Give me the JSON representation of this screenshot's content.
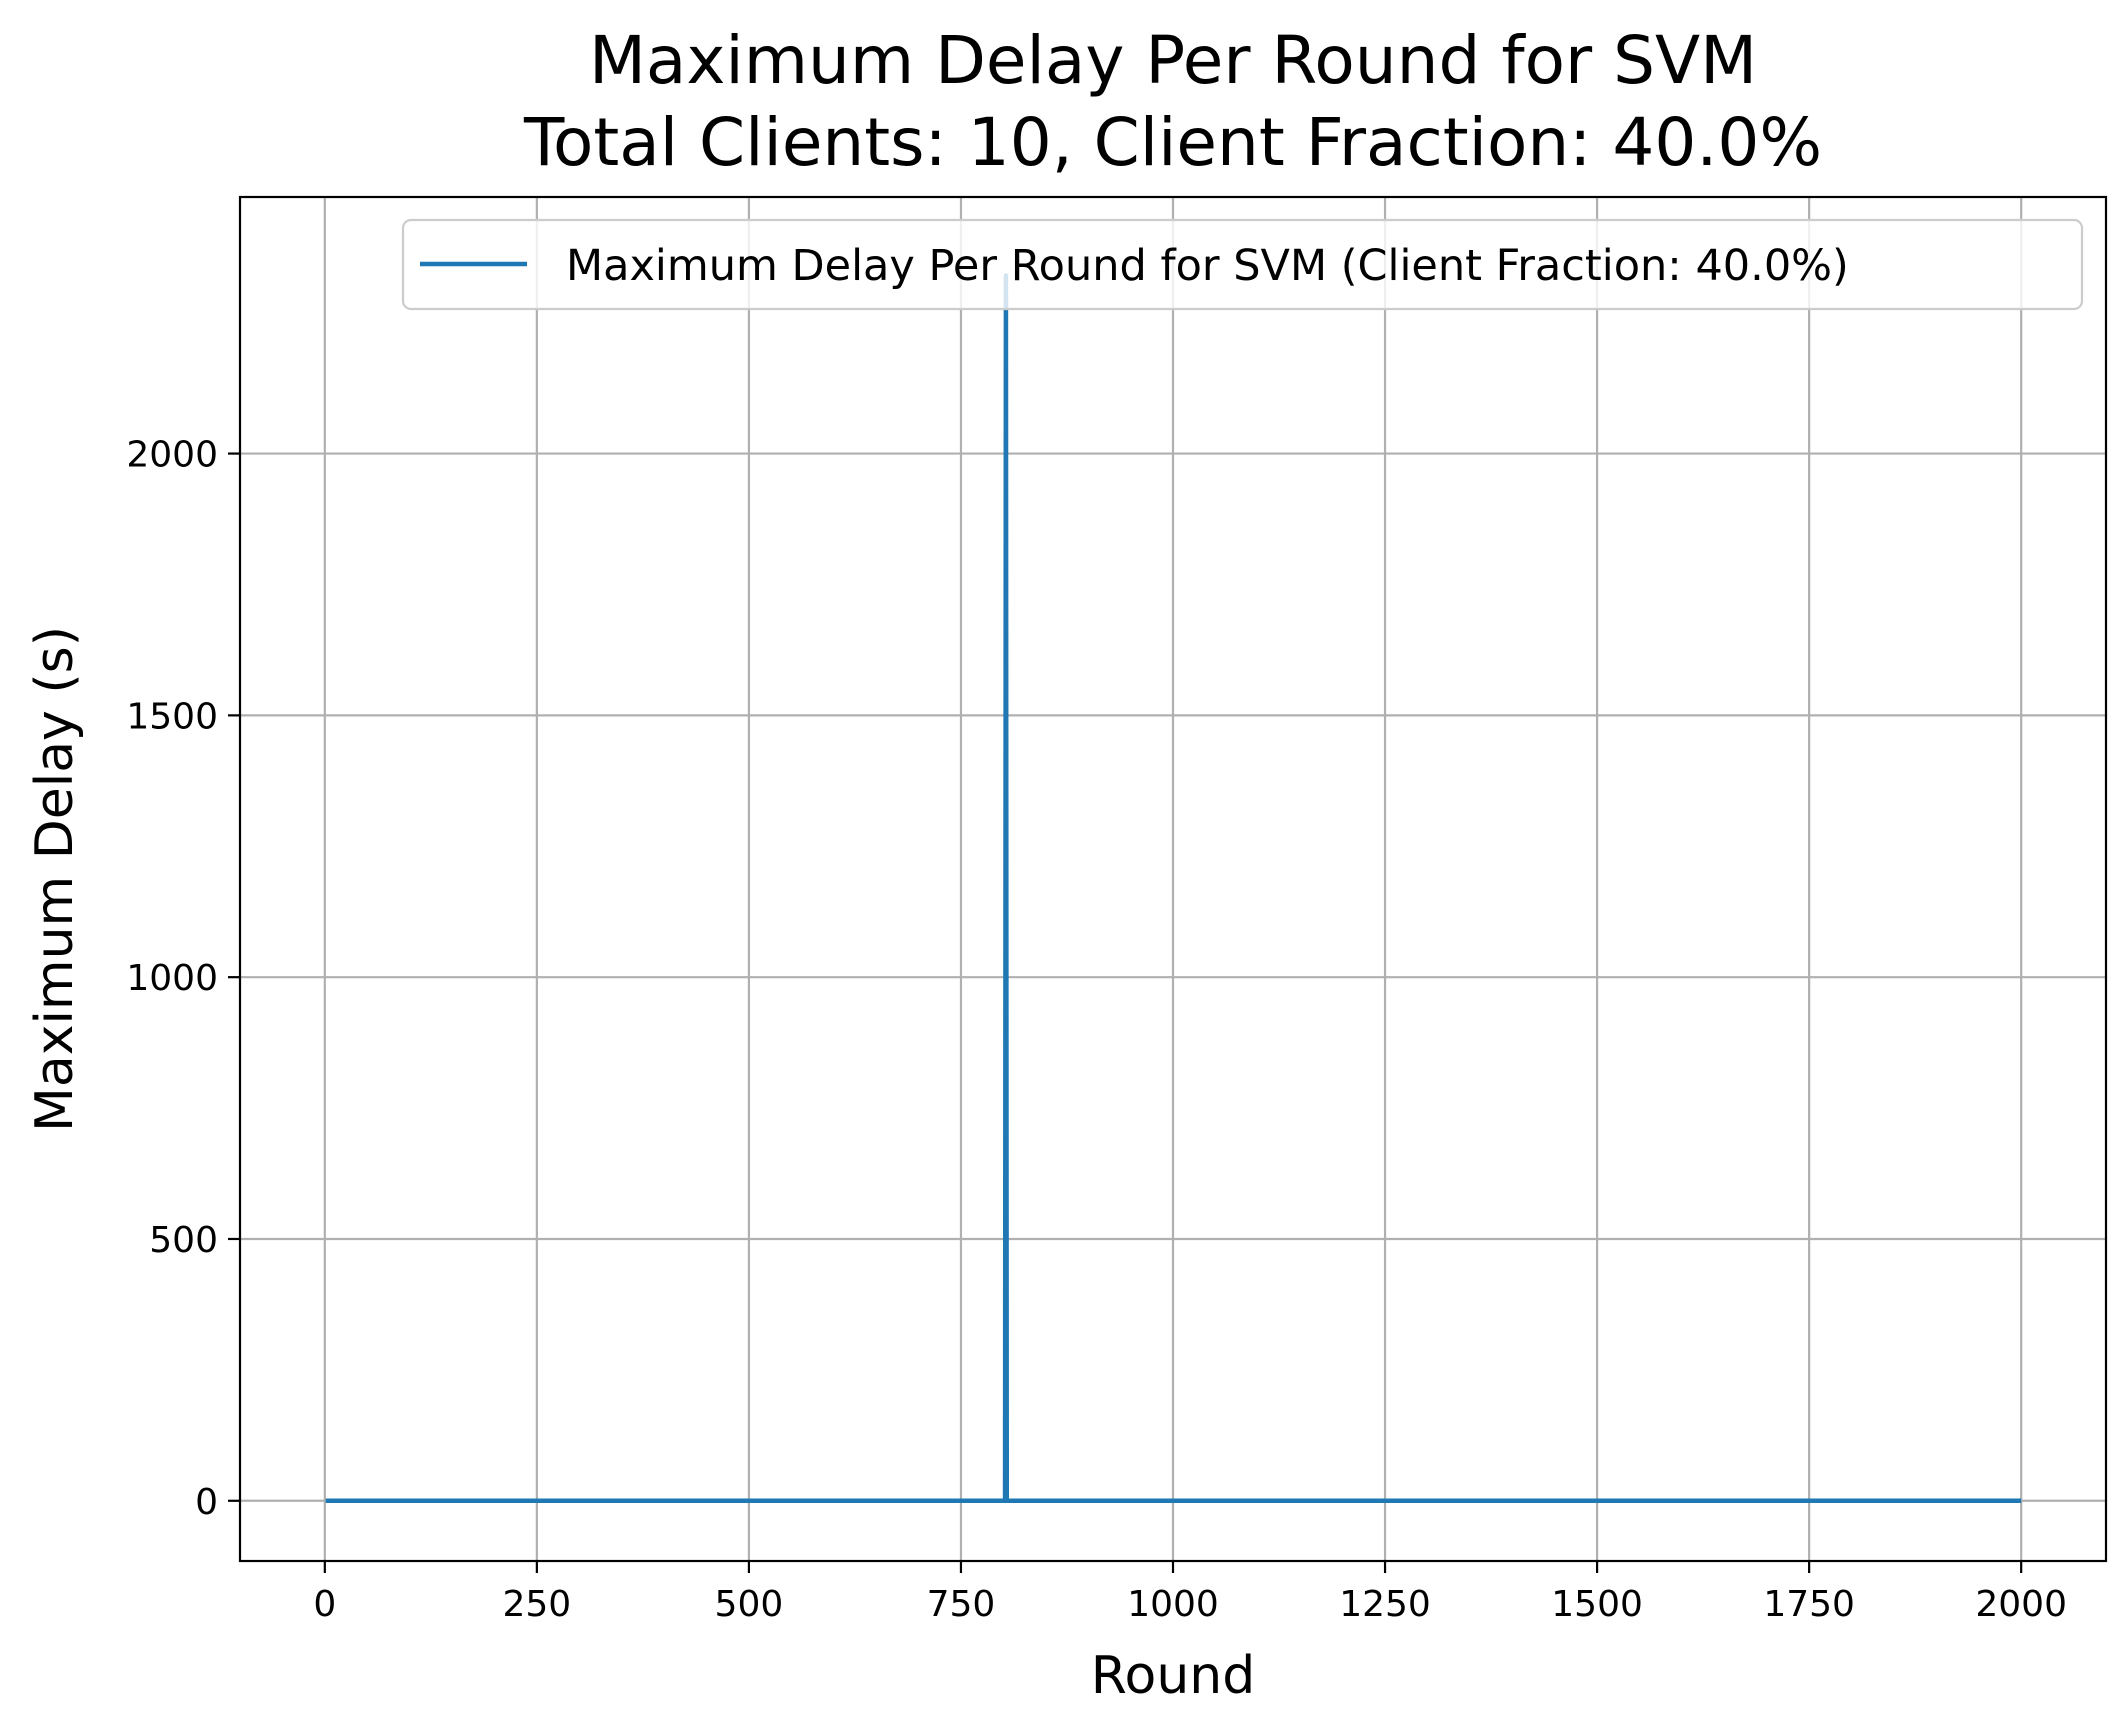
{
  "chart_data": {
    "type": "line",
    "title": [
      "Maximum Delay Per Round for SVM",
      "Total Clients: 10, Client Fraction: 40.0%"
    ],
    "xlabel": "Round",
    "ylabel": "Maximum Delay (s)",
    "xlim": [
      -100,
      2100
    ],
    "ylim": [
      -115,
      2490
    ],
    "xticks": [
      0,
      250,
      500,
      750,
      1000,
      1250,
      1500,
      1750,
      2000
    ],
    "xtick_labels": [
      "0",
      "250",
      "500",
      "750",
      "1000",
      "1250",
      "1500",
      "1750",
      "2000"
    ],
    "yticks": [
      0,
      500,
      1000,
      1500,
      2000
    ],
    "ytick_labels": [
      "0",
      "500",
      "1000",
      "1500",
      "2000"
    ],
    "grid": true,
    "legend": {
      "placement": "upper right"
    },
    "series": [
      {
        "name": "Maximum Delay Per Round for SVM (Client Fraction: 40.0%)",
        "color": "#1f77b4",
        "points": [
          [
            1,
            0
          ],
          [
            802,
            0
          ],
          [
            803,
            2340
          ],
          [
            804,
            0
          ],
          [
            2000,
            0
          ]
        ]
      }
    ]
  }
}
